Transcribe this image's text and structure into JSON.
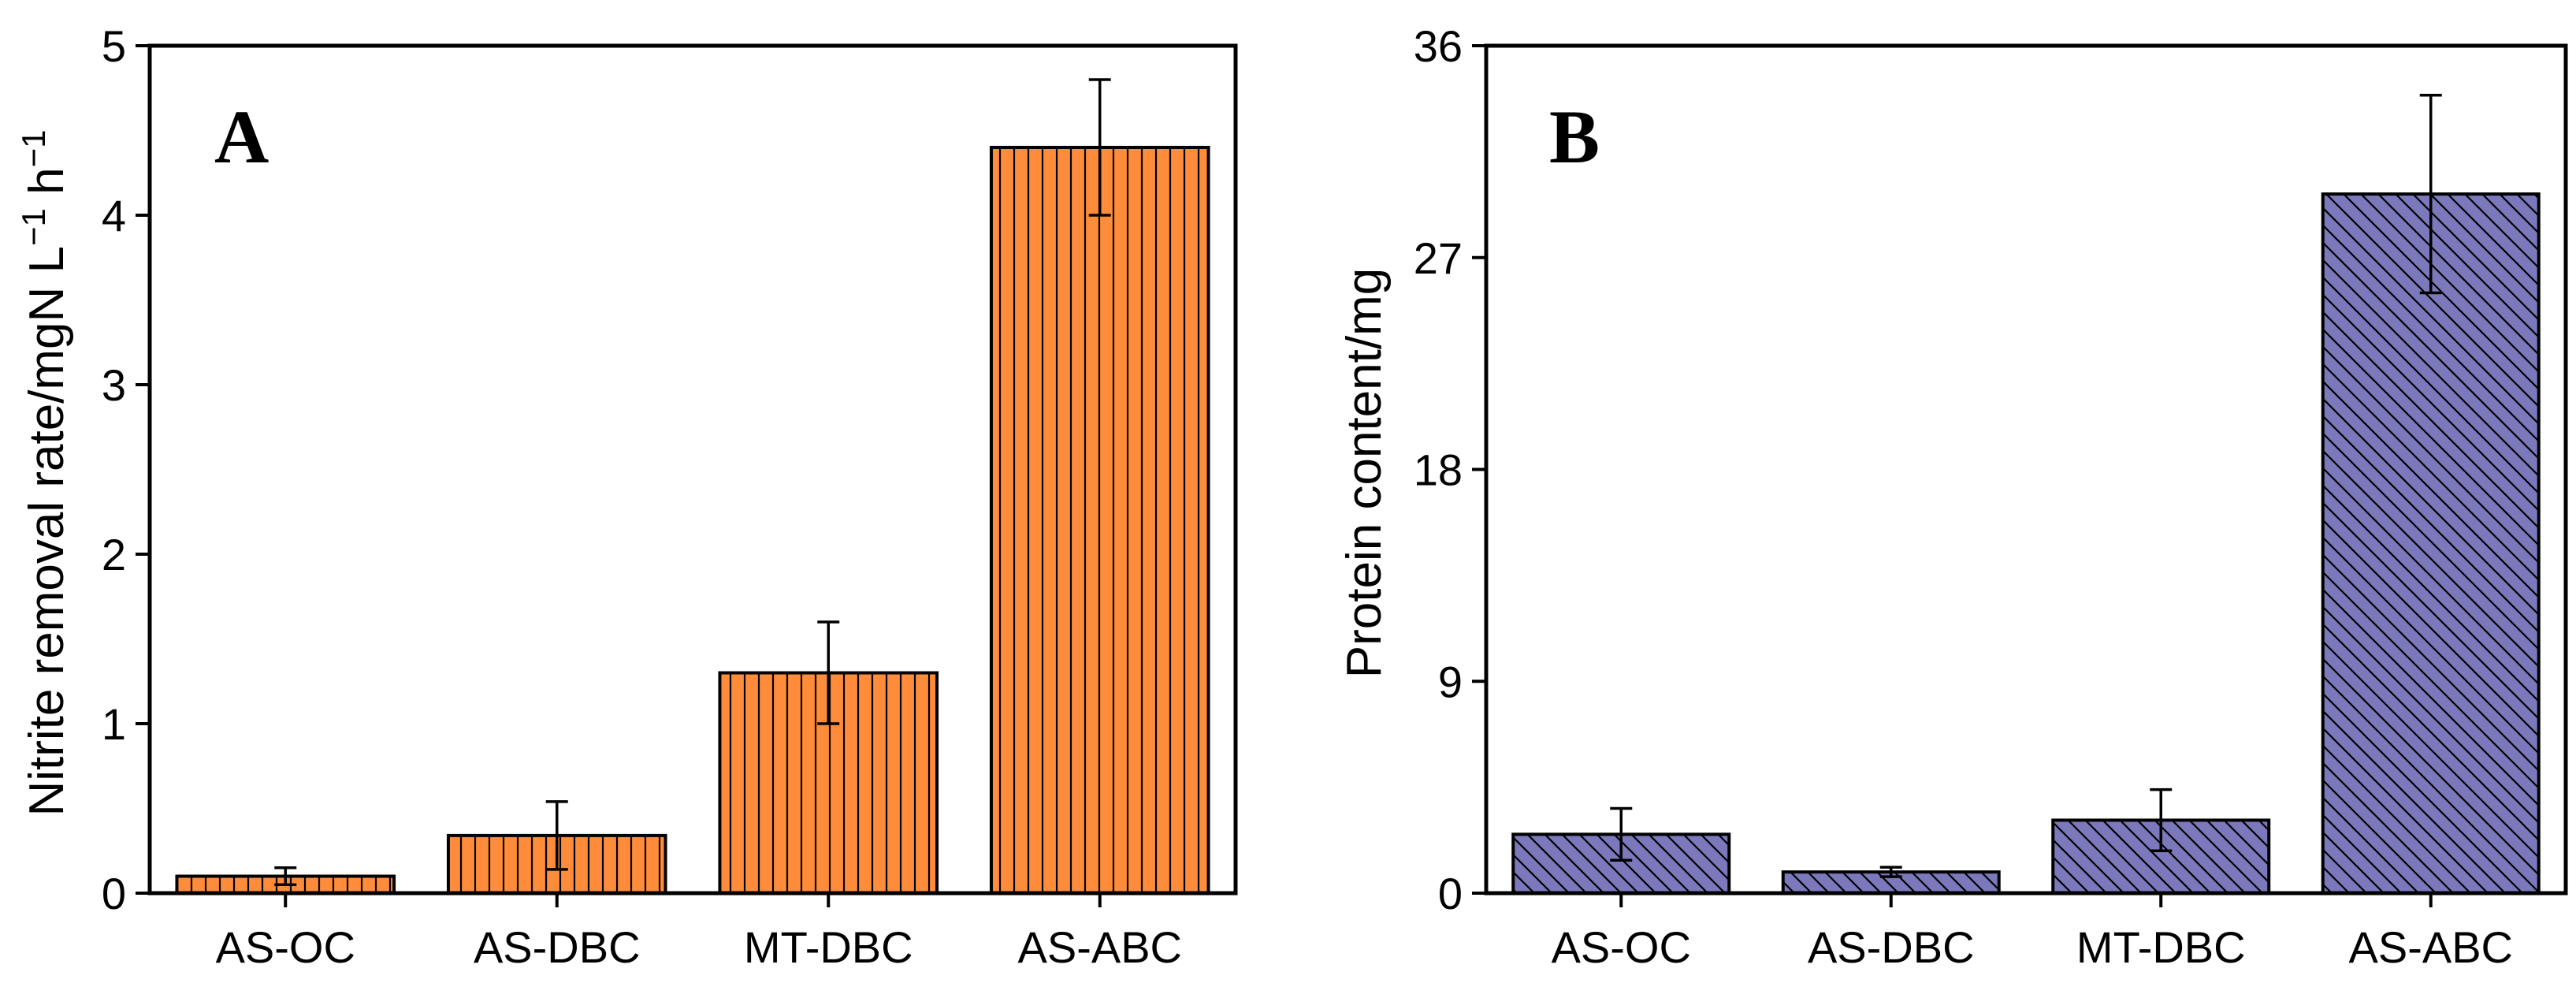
{
  "chart_data": [
    {
      "type": "bar",
      "panel_label": "A",
      "ylabel": "Nitrite removal rate/mgN L",
      "ylabel_unit_sup1": "−1",
      "ylabel_unit_h": " h",
      "ylabel_unit_sup2": "−1",
      "xlabel": "",
      "categories": [
        "AS-OC",
        "AS-DBC",
        "MT-DBC",
        "AS-ABC"
      ],
      "values": [
        0.1,
        0.34,
        1.3,
        4.4
      ],
      "errors": [
        0.05,
        0.2,
        0.3,
        0.4
      ],
      "ylim": [
        0,
        5
      ],
      "yticks": [
        0,
        1,
        2,
        3,
        4,
        5
      ],
      "ytick_labels": [
        "0",
        "1",
        "2",
        "3",
        "4",
        "5"
      ],
      "fill_color": "#ff8c3a",
      "pattern": "vertical-lines",
      "legend": "none"
    },
    {
      "type": "bar",
      "panel_label": "B",
      "ylabel": "Protein content/mg",
      "xlabel": "",
      "categories": [
        "AS-OC",
        "AS-DBC",
        "MT-DBC",
        "AS-ABC"
      ],
      "values": [
        2.5,
        0.9,
        3.1,
        29.7
      ],
      "errors": [
        1.1,
        0.2,
        1.3,
        4.2
      ],
      "ylim": [
        0,
        36
      ],
      "yticks": [
        0,
        9,
        18,
        27,
        36
      ],
      "ytick_labels": [
        "0",
        "9",
        "18",
        "27",
        "36"
      ],
      "fill_color": "#7b78bb",
      "pattern": "diagonal-lines",
      "legend": "none"
    }
  ]
}
